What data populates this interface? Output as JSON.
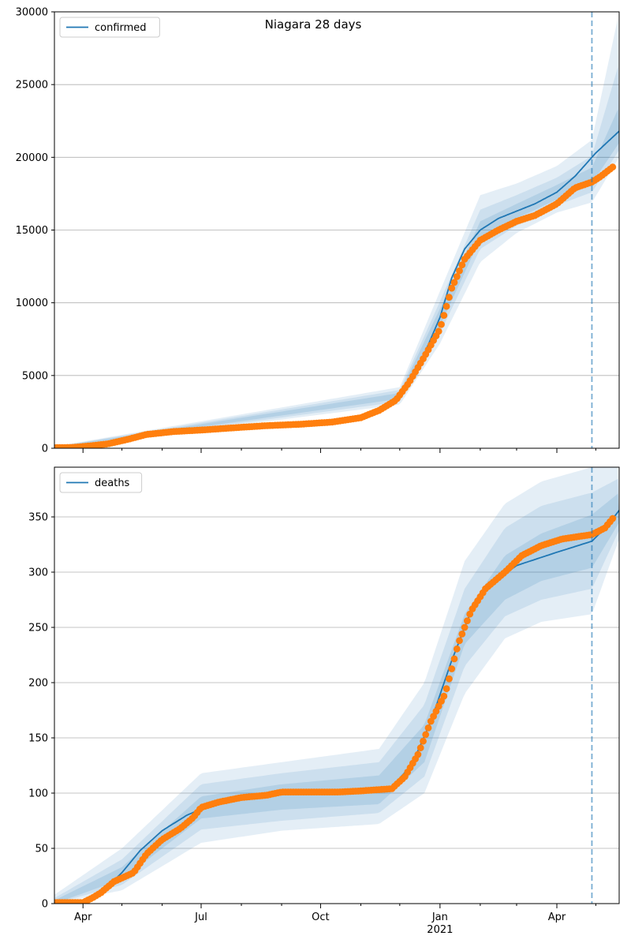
{
  "figure": {
    "suptitle": "Niagara 28 days",
    "colors": {
      "model_line": "#1f77b4",
      "observed_points": "#ff7f0e",
      "band": "#1f77b4",
      "grid": "#b0b0b0",
      "forecast_line": "#1f77b4"
    }
  },
  "x_axis": {
    "start": "2020-03-10",
    "end": "2021-05-19",
    "forecast_date": "2021-04-28",
    "major_ticks": [
      {
        "date": "2020-04-01",
        "label": "Apr"
      },
      {
        "date": "2020-07-01",
        "label": "Jul"
      },
      {
        "date": "2020-10-01",
        "label": "Oct"
      },
      {
        "date": "2021-01-01",
        "label": "Jan",
        "sublabel": "2021"
      },
      {
        "date": "2021-04-01",
        "label": "Apr"
      }
    ],
    "minor_ticks": [
      "2020-05-01",
      "2020-06-01",
      "2020-08-01",
      "2020-09-01",
      "2020-11-01",
      "2020-12-01",
      "2021-02-01",
      "2021-03-01",
      "2021-05-01"
    ]
  },
  "chart_data": [
    {
      "type": "line",
      "legend": [
        "confirmed"
      ],
      "legend_position": "upper-left",
      "grid": "horizontal",
      "ylim": [
        0,
        30000
      ],
      "yticks": [
        0,
        5000,
        10000,
        15000,
        20000,
        25000,
        30000
      ],
      "model": {
        "name": "confirmed",
        "points": [
          [
            "2020-03-10",
            60
          ],
          [
            "2020-04-01",
            120
          ],
          [
            "2020-05-01",
            600
          ],
          [
            "2020-05-20",
            1000
          ],
          [
            "2020-06-15",
            1150
          ],
          [
            "2020-07-15",
            1300
          ],
          [
            "2020-08-15",
            1500
          ],
          [
            "2020-09-15",
            1650
          ],
          [
            "2020-10-15",
            1850
          ],
          [
            "2020-11-01",
            2100
          ],
          [
            "2020-11-15",
            2600
          ],
          [
            "2020-12-01",
            3600
          ],
          [
            "2020-12-10",
            4900
          ],
          [
            "2020-12-20",
            6500
          ],
          [
            "2021-01-01",
            9000
          ],
          [
            "2021-01-10",
            11700
          ],
          [
            "2021-01-20",
            13700
          ],
          [
            "2021-02-01",
            15000
          ],
          [
            "2021-02-15",
            15800
          ],
          [
            "2021-03-01",
            16300
          ],
          [
            "2021-03-15",
            16800
          ],
          [
            "2021-04-01",
            17600
          ],
          [
            "2021-04-15",
            18700
          ],
          [
            "2021-05-01",
            20300
          ],
          [
            "2021-05-19",
            21800
          ]
        ]
      },
      "bands": [
        {
          "level": "95",
          "lower": [
            [
              "2020-03-10",
              0
            ],
            [
              "2020-12-01",
              3000
            ],
            [
              "2021-01-01",
              7200
            ],
            [
              "2021-02-01",
              12800
            ],
            [
              "2021-03-01",
              14800
            ],
            [
              "2021-04-01",
              16200
            ],
            [
              "2021-04-28",
              16900
            ],
            [
              "2021-05-19",
              20000
            ]
          ],
          "upper": [
            [
              "2020-03-10",
              120
            ],
            [
              "2020-12-01",
              4200
            ],
            [
              "2021-01-01",
              10800
            ],
            [
              "2021-02-01",
              17400
            ],
            [
              "2021-03-01",
              18200
            ],
            [
              "2021-04-01",
              19400
            ],
            [
              "2021-04-28",
              21200
            ],
            [
              "2021-05-19",
              30000
            ]
          ]
        },
        {
          "level": "80",
          "lower": [
            [
              "2020-03-10",
              20
            ],
            [
              "2020-12-01",
              3200
            ],
            [
              "2021-01-01",
              7900
            ],
            [
              "2021-02-01",
              13700
            ],
            [
              "2021-03-01",
              15300
            ],
            [
              "2021-04-01",
              16700
            ],
            [
              "2021-04-28",
              17600
            ],
            [
              "2021-05-19",
              20500
            ]
          ],
          "upper": [
            [
              "2020-03-10",
              100
            ],
            [
              "2020-12-01",
              4000
            ],
            [
              "2021-01-01",
              10100
            ],
            [
              "2021-02-01",
              16400
            ],
            [
              "2021-03-01",
              17400
            ],
            [
              "2021-04-01",
              18600
            ],
            [
              "2021-04-28",
              20100
            ],
            [
              "2021-05-19",
              26500
            ]
          ]
        },
        {
          "level": "50",
          "lower": [
            [
              "2020-03-10",
              40
            ],
            [
              "2020-12-01",
              3400
            ],
            [
              "2021-01-01",
              8400
            ],
            [
              "2021-02-01",
              14400
            ],
            [
              "2021-03-01",
              15800
            ],
            [
              "2021-04-01",
              17100
            ],
            [
              "2021-04-28",
              18200
            ],
            [
              "2021-05-19",
              21000
            ]
          ],
          "upper": [
            [
              "2020-03-10",
              80
            ],
            [
              "2020-12-01",
              3800
            ],
            [
              "2021-01-01",
              9600
            ],
            [
              "2021-02-01",
              15600
            ],
            [
              "2021-03-01",
              16800
            ],
            [
              "2021-04-01",
              18100
            ],
            [
              "2021-04-28",
              19300
            ],
            [
              "2021-05-19",
              23500
            ]
          ]
        }
      ],
      "observed": {
        "points": [
          [
            "2020-03-10",
            40
          ],
          [
            "2020-03-25",
            60
          ],
          [
            "2020-04-05",
            150
          ],
          [
            "2020-04-20",
            300
          ],
          [
            "2020-05-05",
            600
          ],
          [
            "2020-05-20",
            950
          ],
          [
            "2020-06-10",
            1150
          ],
          [
            "2020-07-01",
            1250
          ],
          [
            "2020-07-25",
            1400
          ],
          [
            "2020-08-20",
            1550
          ],
          [
            "2020-09-15",
            1650
          ],
          [
            "2020-10-10",
            1800
          ],
          [
            "2020-11-01",
            2100
          ],
          [
            "2020-11-15",
            2600
          ],
          [
            "2020-11-28",
            3300
          ],
          [
            "2020-12-08",
            4500
          ],
          [
            "2020-12-20",
            6300
          ],
          [
            "2021-01-01",
            8200
          ],
          [
            "2021-01-10",
            11000
          ],
          [
            "2021-01-20",
            13000
          ],
          [
            "2021-02-01",
            14300
          ],
          [
            "2021-02-15",
            15000
          ],
          [
            "2021-03-01",
            15600
          ],
          [
            "2021-03-15",
            16000
          ],
          [
            "2021-04-01",
            16800
          ],
          [
            "2021-04-15",
            17900
          ],
          [
            "2021-04-28",
            18300
          ],
          [
            "2021-05-05",
            18700
          ],
          [
            "2021-05-15",
            19400
          ]
        ]
      }
    },
    {
      "type": "line",
      "legend": [
        "deaths"
      ],
      "legend_position": "upper-left",
      "grid": "horizontal",
      "ylim": [
        0,
        395
      ],
      "yticks": [
        0,
        50,
        100,
        150,
        200,
        250,
        300,
        350
      ],
      "model": {
        "name": "deaths",
        "points": [
          [
            "2020-03-10",
            1
          ],
          [
            "2020-04-01",
            2
          ],
          [
            "2020-04-15",
            10
          ],
          [
            "2020-05-01",
            28
          ],
          [
            "2020-05-15",
            48
          ],
          [
            "2020-06-01",
            66
          ],
          [
            "2020-06-20",
            80
          ],
          [
            "2020-07-10",
            90
          ],
          [
            "2020-08-01",
            96
          ],
          [
            "2020-09-01",
            100
          ],
          [
            "2020-10-01",
            101
          ],
          [
            "2020-11-01",
            102
          ],
          [
            "2020-11-25",
            106
          ],
          [
            "2020-12-10",
            125
          ],
          [
            "2020-12-25",
            165
          ],
          [
            "2021-01-10",
            220
          ],
          [
            "2021-01-25",
            265
          ],
          [
            "2021-02-10",
            290
          ],
          [
            "2021-03-01",
            306
          ],
          [
            "2021-04-01",
            318
          ],
          [
            "2021-04-28",
            328
          ],
          [
            "2021-05-10",
            342
          ],
          [
            "2021-05-19",
            356
          ]
        ]
      },
      "bands": [
        {
          "level": "95",
          "lower": [
            [
              "2020-03-10",
              0
            ],
            [
              "2020-05-01",
              12
            ],
            [
              "2020-07-01",
              55
            ],
            [
              "2020-09-01",
              66
            ],
            [
              "2020-11-15",
              72
            ],
            [
              "2020-12-20",
              100
            ],
            [
              "2021-01-20",
              190
            ],
            [
              "2021-02-20",
              240
            ],
            [
              "2021-03-20",
              255
            ],
            [
              "2021-04-28",
              262
            ],
            [
              "2021-05-19",
              330
            ]
          ],
          "upper": [
            [
              "2020-03-10",
              8
            ],
            [
              "2020-05-01",
              50
            ],
            [
              "2020-07-01",
              118
            ],
            [
              "2020-09-01",
              128
            ],
            [
              "2020-11-15",
              140
            ],
            [
              "2020-12-20",
              200
            ],
            [
              "2021-01-20",
              310
            ],
            [
              "2021-02-20",
              362
            ],
            [
              "2021-03-20",
              382
            ],
            [
              "2021-04-28",
              395
            ],
            [
              "2021-05-19",
              395
            ]
          ]
        },
        {
          "level": "80",
          "lower": [
            [
              "2020-03-10",
              0
            ],
            [
              "2020-05-01",
              17
            ],
            [
              "2020-07-01",
              67
            ],
            [
              "2020-09-01",
              75
            ],
            [
              "2020-11-15",
              82
            ],
            [
              "2020-12-20",
              115
            ],
            [
              "2021-01-20",
              215
            ],
            [
              "2021-02-20",
              260
            ],
            [
              "2021-03-20",
              275
            ],
            [
              "2021-04-28",
              285
            ],
            [
              "2021-05-19",
              338
            ]
          ],
          "upper": [
            [
              "2020-03-10",
              5
            ],
            [
              "2020-05-01",
              40
            ],
            [
              "2020-07-01",
              108
            ],
            [
              "2020-09-01",
              118
            ],
            [
              "2020-11-15",
              128
            ],
            [
              "2020-12-20",
              180
            ],
            [
              "2021-01-20",
              285
            ],
            [
              "2021-02-20",
              340
            ],
            [
              "2021-03-20",
              360
            ],
            [
              "2021-04-28",
              372
            ],
            [
              "2021-05-19",
              385
            ]
          ]
        },
        {
          "level": "50",
          "lower": [
            [
              "2020-03-10",
              0
            ],
            [
              "2020-05-01",
              22
            ],
            [
              "2020-07-01",
              77
            ],
            [
              "2020-09-01",
              85
            ],
            [
              "2020-11-15",
              90
            ],
            [
              "2020-12-20",
              128
            ],
            [
              "2021-01-20",
              235
            ],
            [
              "2021-02-20",
              275
            ],
            [
              "2021-03-20",
              292
            ],
            [
              "2021-04-28",
              304
            ],
            [
              "2021-05-19",
              345
            ]
          ],
          "upper": [
            [
              "2020-03-10",
              3
            ],
            [
              "2020-05-01",
              33
            ],
            [
              "2020-07-01",
              97
            ],
            [
              "2020-09-01",
              108
            ],
            [
              "2020-11-15",
              116
            ],
            [
              "2020-12-20",
              162
            ],
            [
              "2021-01-20",
              262
            ],
            [
              "2021-02-20",
              315
            ],
            [
              "2021-03-20",
              335
            ],
            [
              "2021-04-28",
              352
            ],
            [
              "2021-05-19",
              372
            ]
          ]
        }
      ],
      "observed": {
        "points": [
          [
            "2020-03-10",
            1
          ],
          [
            "2020-04-01",
            1
          ],
          [
            "2020-04-08",
            5
          ],
          [
            "2020-04-15",
            10
          ],
          [
            "2020-04-25",
            20
          ],
          [
            "2020-05-10",
            28
          ],
          [
            "2020-05-20",
            45
          ],
          [
            "2020-06-01",
            58
          ],
          [
            "2020-06-15",
            68
          ],
          [
            "2020-06-25",
            78
          ],
          [
            "2020-07-01",
            87
          ],
          [
            "2020-07-15",
            92
          ],
          [
            "2020-08-01",
            96
          ],
          [
            "2020-08-20",
            98
          ],
          [
            "2020-09-01",
            101
          ],
          [
            "2020-10-15",
            101
          ],
          [
            "2020-11-01",
            102
          ],
          [
            "2020-11-25",
            104
          ],
          [
            "2020-12-05",
            115
          ],
          [
            "2020-12-15",
            135
          ],
          [
            "2020-12-25",
            165
          ],
          [
            "2021-01-05",
            190
          ],
          [
            "2021-01-15",
            235
          ],
          [
            "2021-01-25",
            265
          ],
          [
            "2021-02-05",
            285
          ],
          [
            "2021-02-20",
            300
          ],
          [
            "2021-03-05",
            315
          ],
          [
            "2021-03-20",
            324
          ],
          [
            "2021-04-05",
            330
          ],
          [
            "2021-04-28",
            334
          ],
          [
            "2021-05-08",
            340
          ],
          [
            "2021-05-15",
            350
          ]
        ]
      }
    }
  ]
}
